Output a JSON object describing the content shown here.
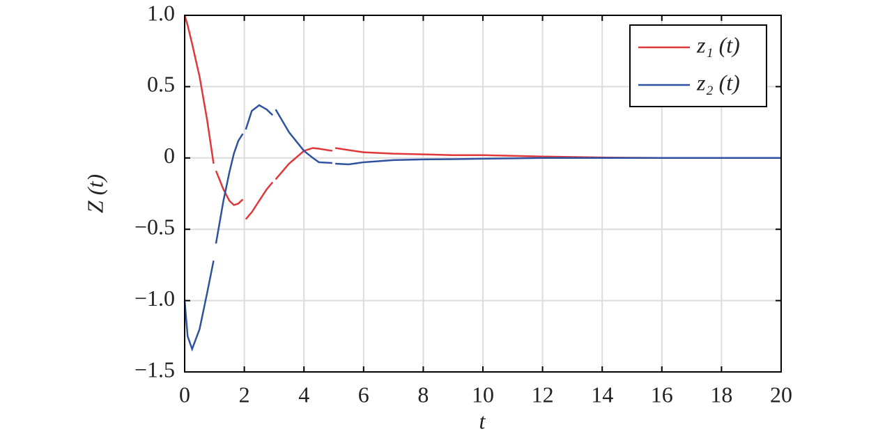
{
  "chart_data": {
    "type": "line",
    "x_label": "t",
    "y_label": "Z (t)",
    "x": [
      0,
      0.1,
      0.25,
      0.5,
      0.75,
      0.97,
      1,
      1.05,
      1.3,
      1.5,
      1.65,
      1.8,
      1.95,
      2,
      2.05,
      2.25,
      2.5,
      2.75,
      2.95,
      3,
      3.05,
      3.5,
      4,
      4.3,
      4.5,
      4.95,
      5,
      5.05,
      5.5,
      6,
      7,
      8,
      9,
      10,
      12,
      14,
      16,
      18,
      20
    ],
    "series": [
      {
        "name": "z₁ (t)",
        "color": "#e0383a",
        "values": [
          1.0,
          0.93,
          0.8,
          0.57,
          0.27,
          -0.04,
          null,
          -0.09,
          -0.22,
          -0.3,
          -0.33,
          -0.32,
          -0.29,
          null,
          -0.43,
          -0.38,
          -0.3,
          -0.22,
          -0.17,
          null,
          -0.15,
          -0.04,
          0.05,
          0.07,
          0.065,
          0.05,
          null,
          0.07,
          0.055,
          0.04,
          0.03,
          0.025,
          0.02,
          0.02,
          0.01,
          0.003,
          0,
          0,
          0
        ]
      },
      {
        "name": "z₂ (t)",
        "color": "#2f52a0",
        "values": [
          -1.0,
          -1.25,
          -1.34,
          -1.2,
          -0.95,
          -0.72,
          null,
          -0.6,
          -0.3,
          -0.1,
          0.03,
          0.12,
          0.17,
          null,
          0.2,
          0.33,
          0.37,
          0.34,
          0.3,
          null,
          0.34,
          0.18,
          0.05,
          0,
          -0.03,
          -0.035,
          null,
          -0.04,
          -0.045,
          -0.03,
          -0.015,
          -0.01,
          -0.008,
          -0.005,
          0,
          0,
          0,
          0,
          0
        ]
      }
    ],
    "xlim": [
      0,
      20
    ],
    "xticks": [
      0,
      2,
      4,
      6,
      8,
      10,
      12,
      14,
      16,
      18,
      20
    ],
    "ylim": [
      -1.5,
      1.0
    ],
    "yticks": [
      {
        "value": -1.5,
        "label": "−1.5"
      },
      {
        "value": -1.0,
        "label": "−1.0"
      },
      {
        "value": -0.5,
        "label": "−0.5"
      },
      0,
      0.5,
      {
        "value": 1.0,
        "label": "1.0"
      }
    ],
    "grid": true,
    "legend": "upper right"
  }
}
